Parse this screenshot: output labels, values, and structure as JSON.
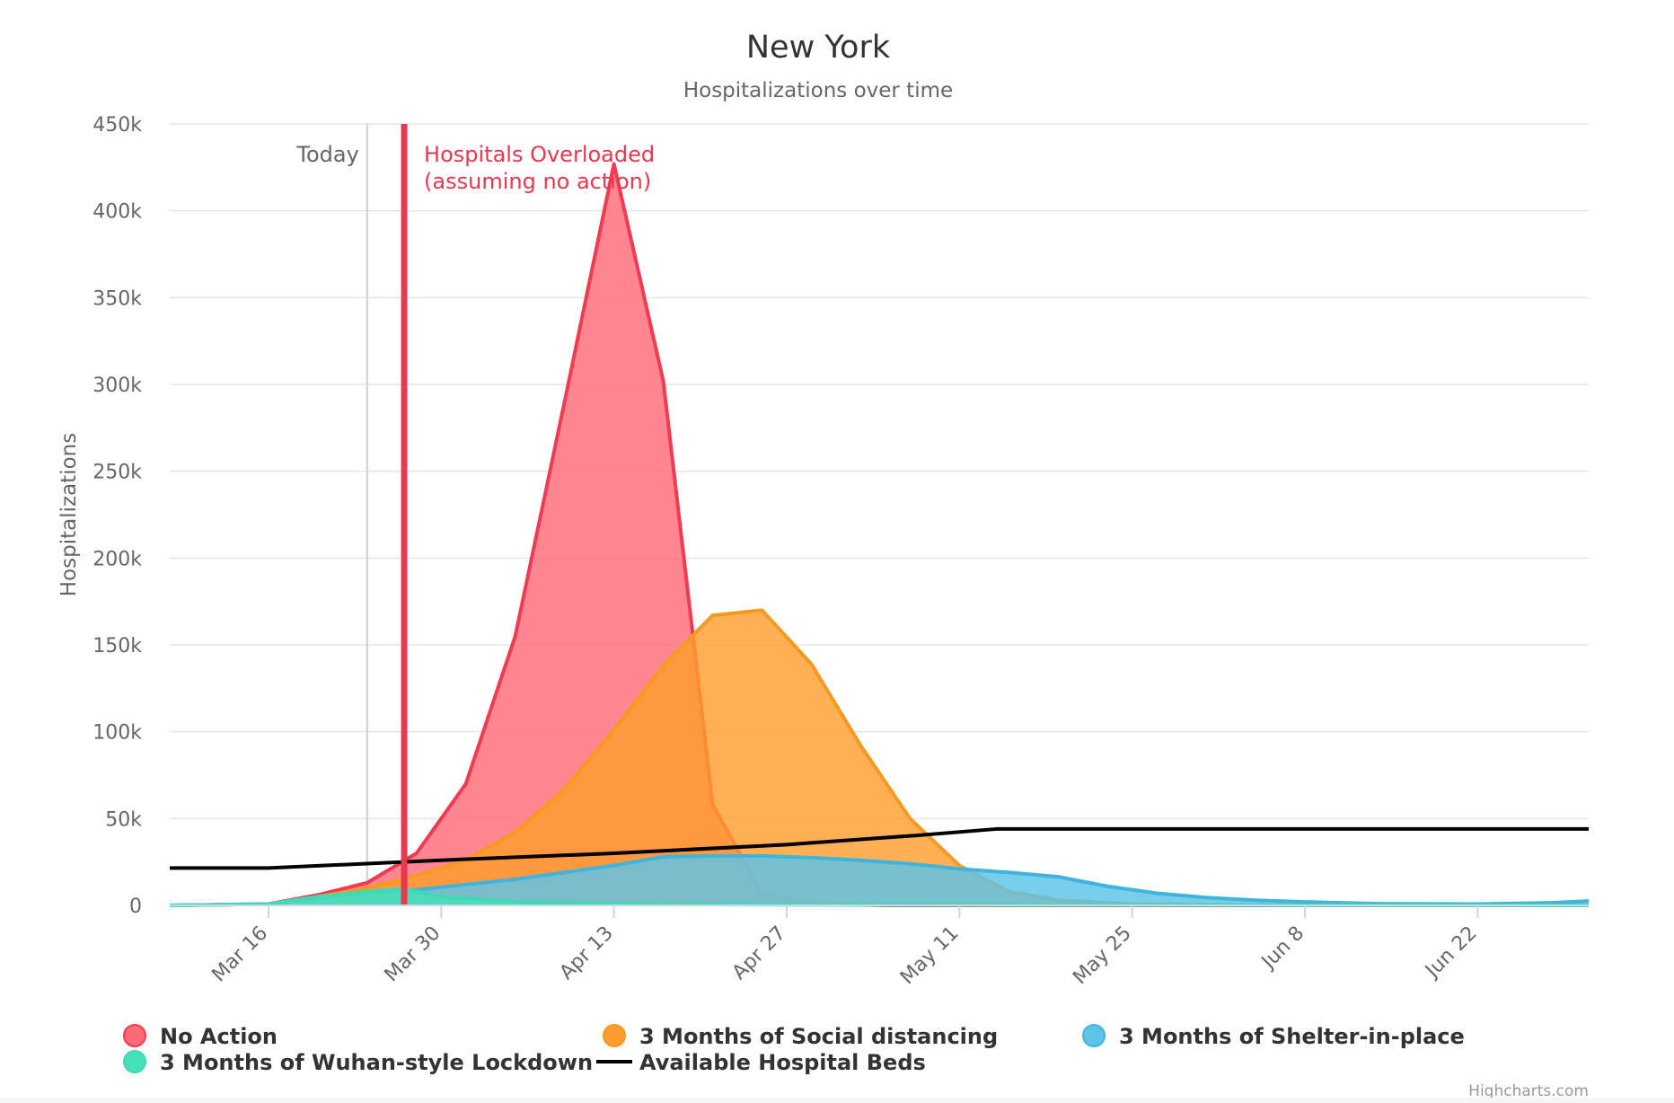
{
  "chart_data": {
    "type": "area",
    "title": "New York",
    "subtitle": "Hospitalizations over time",
    "ylabel": "Hospitalizations",
    "ylim": [
      0,
      450000
    ],
    "yticks": [
      0,
      50000,
      100000,
      150000,
      200000,
      250000,
      300000,
      350000,
      400000,
      450000
    ],
    "ytick_labels": [
      "0",
      "50k",
      "100k",
      "150k",
      "200k",
      "250k",
      "300k",
      "350k",
      "400k",
      "450k"
    ],
    "xlim": [
      "2020-03-08",
      "2020-07-01"
    ],
    "xticks": [
      "2020-03-16",
      "2020-03-30",
      "2020-04-13",
      "2020-04-27",
      "2020-05-11",
      "2020-05-25",
      "2020-06-08",
      "2020-06-22"
    ],
    "xtick_labels": [
      "Mar 16",
      "Mar 30",
      "Apr 13",
      "Apr 27",
      "May 11",
      "May 25",
      "Jun 8",
      "Jun 22"
    ],
    "grid": true,
    "legend_position": "bottom",
    "credits": "Highcharts.com",
    "plot_lines": [
      {
        "date": "2020-03-24",
        "label": "Today",
        "color": "#d6d6d6"
      },
      {
        "date": "2020-03-27",
        "label_lines": [
          "Hospitals Overloaded",
          "(assuming no action)"
        ],
        "color": "#e8374f"
      }
    ],
    "series": [
      {
        "name": "No Action",
        "kind": "area",
        "color": "#f23a52",
        "fill": "#ff6a77",
        "points": [
          [
            "2020-03-08",
            0
          ],
          [
            "2020-03-16",
            800
          ],
          [
            "2020-03-20",
            6000
          ],
          [
            "2020-03-24",
            13000
          ],
          [
            "2020-03-28",
            30000
          ],
          [
            "2020-04-01",
            70000
          ],
          [
            "2020-04-05",
            155000
          ],
          [
            "2020-04-09",
            290000
          ],
          [
            "2020-04-13",
            427000
          ],
          [
            "2020-04-17",
            302000
          ],
          [
            "2020-04-21",
            58000
          ],
          [
            "2020-04-25",
            7000
          ],
          [
            "2020-04-29",
            800
          ],
          [
            "2020-05-05",
            0
          ],
          [
            "2020-07-01",
            0
          ]
        ]
      },
      {
        "name": "3 Months of Social distancing",
        "kind": "area",
        "color": "#f59a1d",
        "fill": "#ff9e2e",
        "points": [
          [
            "2020-03-08",
            0
          ],
          [
            "2020-03-16",
            800
          ],
          [
            "2020-03-20",
            5000
          ],
          [
            "2020-03-24",
            10000
          ],
          [
            "2020-03-28",
            17000
          ],
          [
            "2020-04-01",
            26000
          ],
          [
            "2020-04-05",
            42000
          ],
          [
            "2020-04-09",
            67000
          ],
          [
            "2020-04-13",
            101000
          ],
          [
            "2020-04-17",
            138000
          ],
          [
            "2020-04-21",
            167000
          ],
          [
            "2020-04-25",
            170000
          ],
          [
            "2020-04-29",
            139000
          ],
          [
            "2020-05-03",
            92000
          ],
          [
            "2020-05-07",
            50000
          ],
          [
            "2020-05-11",
            23000
          ],
          [
            "2020-05-15",
            8000
          ],
          [
            "2020-05-19",
            3000
          ],
          [
            "2020-05-25",
            800
          ],
          [
            "2020-06-08",
            0
          ],
          [
            "2020-07-01",
            0
          ]
        ]
      },
      {
        "name": "3 Months of Shelter-in-place",
        "kind": "area",
        "color": "#3fb4dd",
        "fill": "#5cc3e9",
        "points": [
          [
            "2020-03-08",
            0
          ],
          [
            "2020-03-16",
            800
          ],
          [
            "2020-03-20",
            4000
          ],
          [
            "2020-03-24",
            7000
          ],
          [
            "2020-03-28",
            9000
          ],
          [
            "2020-04-01",
            12000
          ],
          [
            "2020-04-05",
            15000
          ],
          [
            "2020-04-09",
            19000
          ],
          [
            "2020-04-13",
            23000
          ],
          [
            "2020-04-17",
            28000
          ],
          [
            "2020-04-21",
            28500
          ],
          [
            "2020-04-25",
            28500
          ],
          [
            "2020-04-29",
            27500
          ],
          [
            "2020-05-03",
            26000
          ],
          [
            "2020-05-07",
            24000
          ],
          [
            "2020-05-11",
            21000
          ],
          [
            "2020-05-15",
            19000
          ],
          [
            "2020-05-19",
            16500
          ],
          [
            "2020-05-23",
            11000
          ],
          [
            "2020-05-27",
            7000
          ],
          [
            "2020-05-31",
            4500
          ],
          [
            "2020-06-04",
            3000
          ],
          [
            "2020-06-08",
            2000
          ],
          [
            "2020-06-14",
            1000
          ],
          [
            "2020-06-22",
            800
          ],
          [
            "2020-06-28",
            1500
          ],
          [
            "2020-07-01",
            2500
          ]
        ]
      },
      {
        "name": "3 Months of Wuhan-style Lockdown",
        "kind": "area",
        "color": "#3fd9b4",
        "fill": "#46e0b8",
        "points": [
          [
            "2020-03-08",
            0
          ],
          [
            "2020-03-16",
            800
          ],
          [
            "2020-03-20",
            5000
          ],
          [
            "2020-03-24",
            8000
          ],
          [
            "2020-03-27",
            9500
          ],
          [
            "2020-03-30",
            5000
          ],
          [
            "2020-04-05",
            2000
          ],
          [
            "2020-04-13",
            800
          ],
          [
            "2020-04-27",
            300
          ],
          [
            "2020-07-01",
            0
          ]
        ]
      },
      {
        "name": "Available Hospital Beds",
        "kind": "line",
        "color": "#000000",
        "points": [
          [
            "2020-03-08",
            21500
          ],
          [
            "2020-03-16",
            21500
          ],
          [
            "2020-03-30",
            26000
          ],
          [
            "2020-04-13",
            30000
          ],
          [
            "2020-04-27",
            35000
          ],
          [
            "2020-05-07",
            40000
          ],
          [
            "2020-05-14",
            44000
          ],
          [
            "2020-07-01",
            44000
          ]
        ]
      }
    ]
  }
}
